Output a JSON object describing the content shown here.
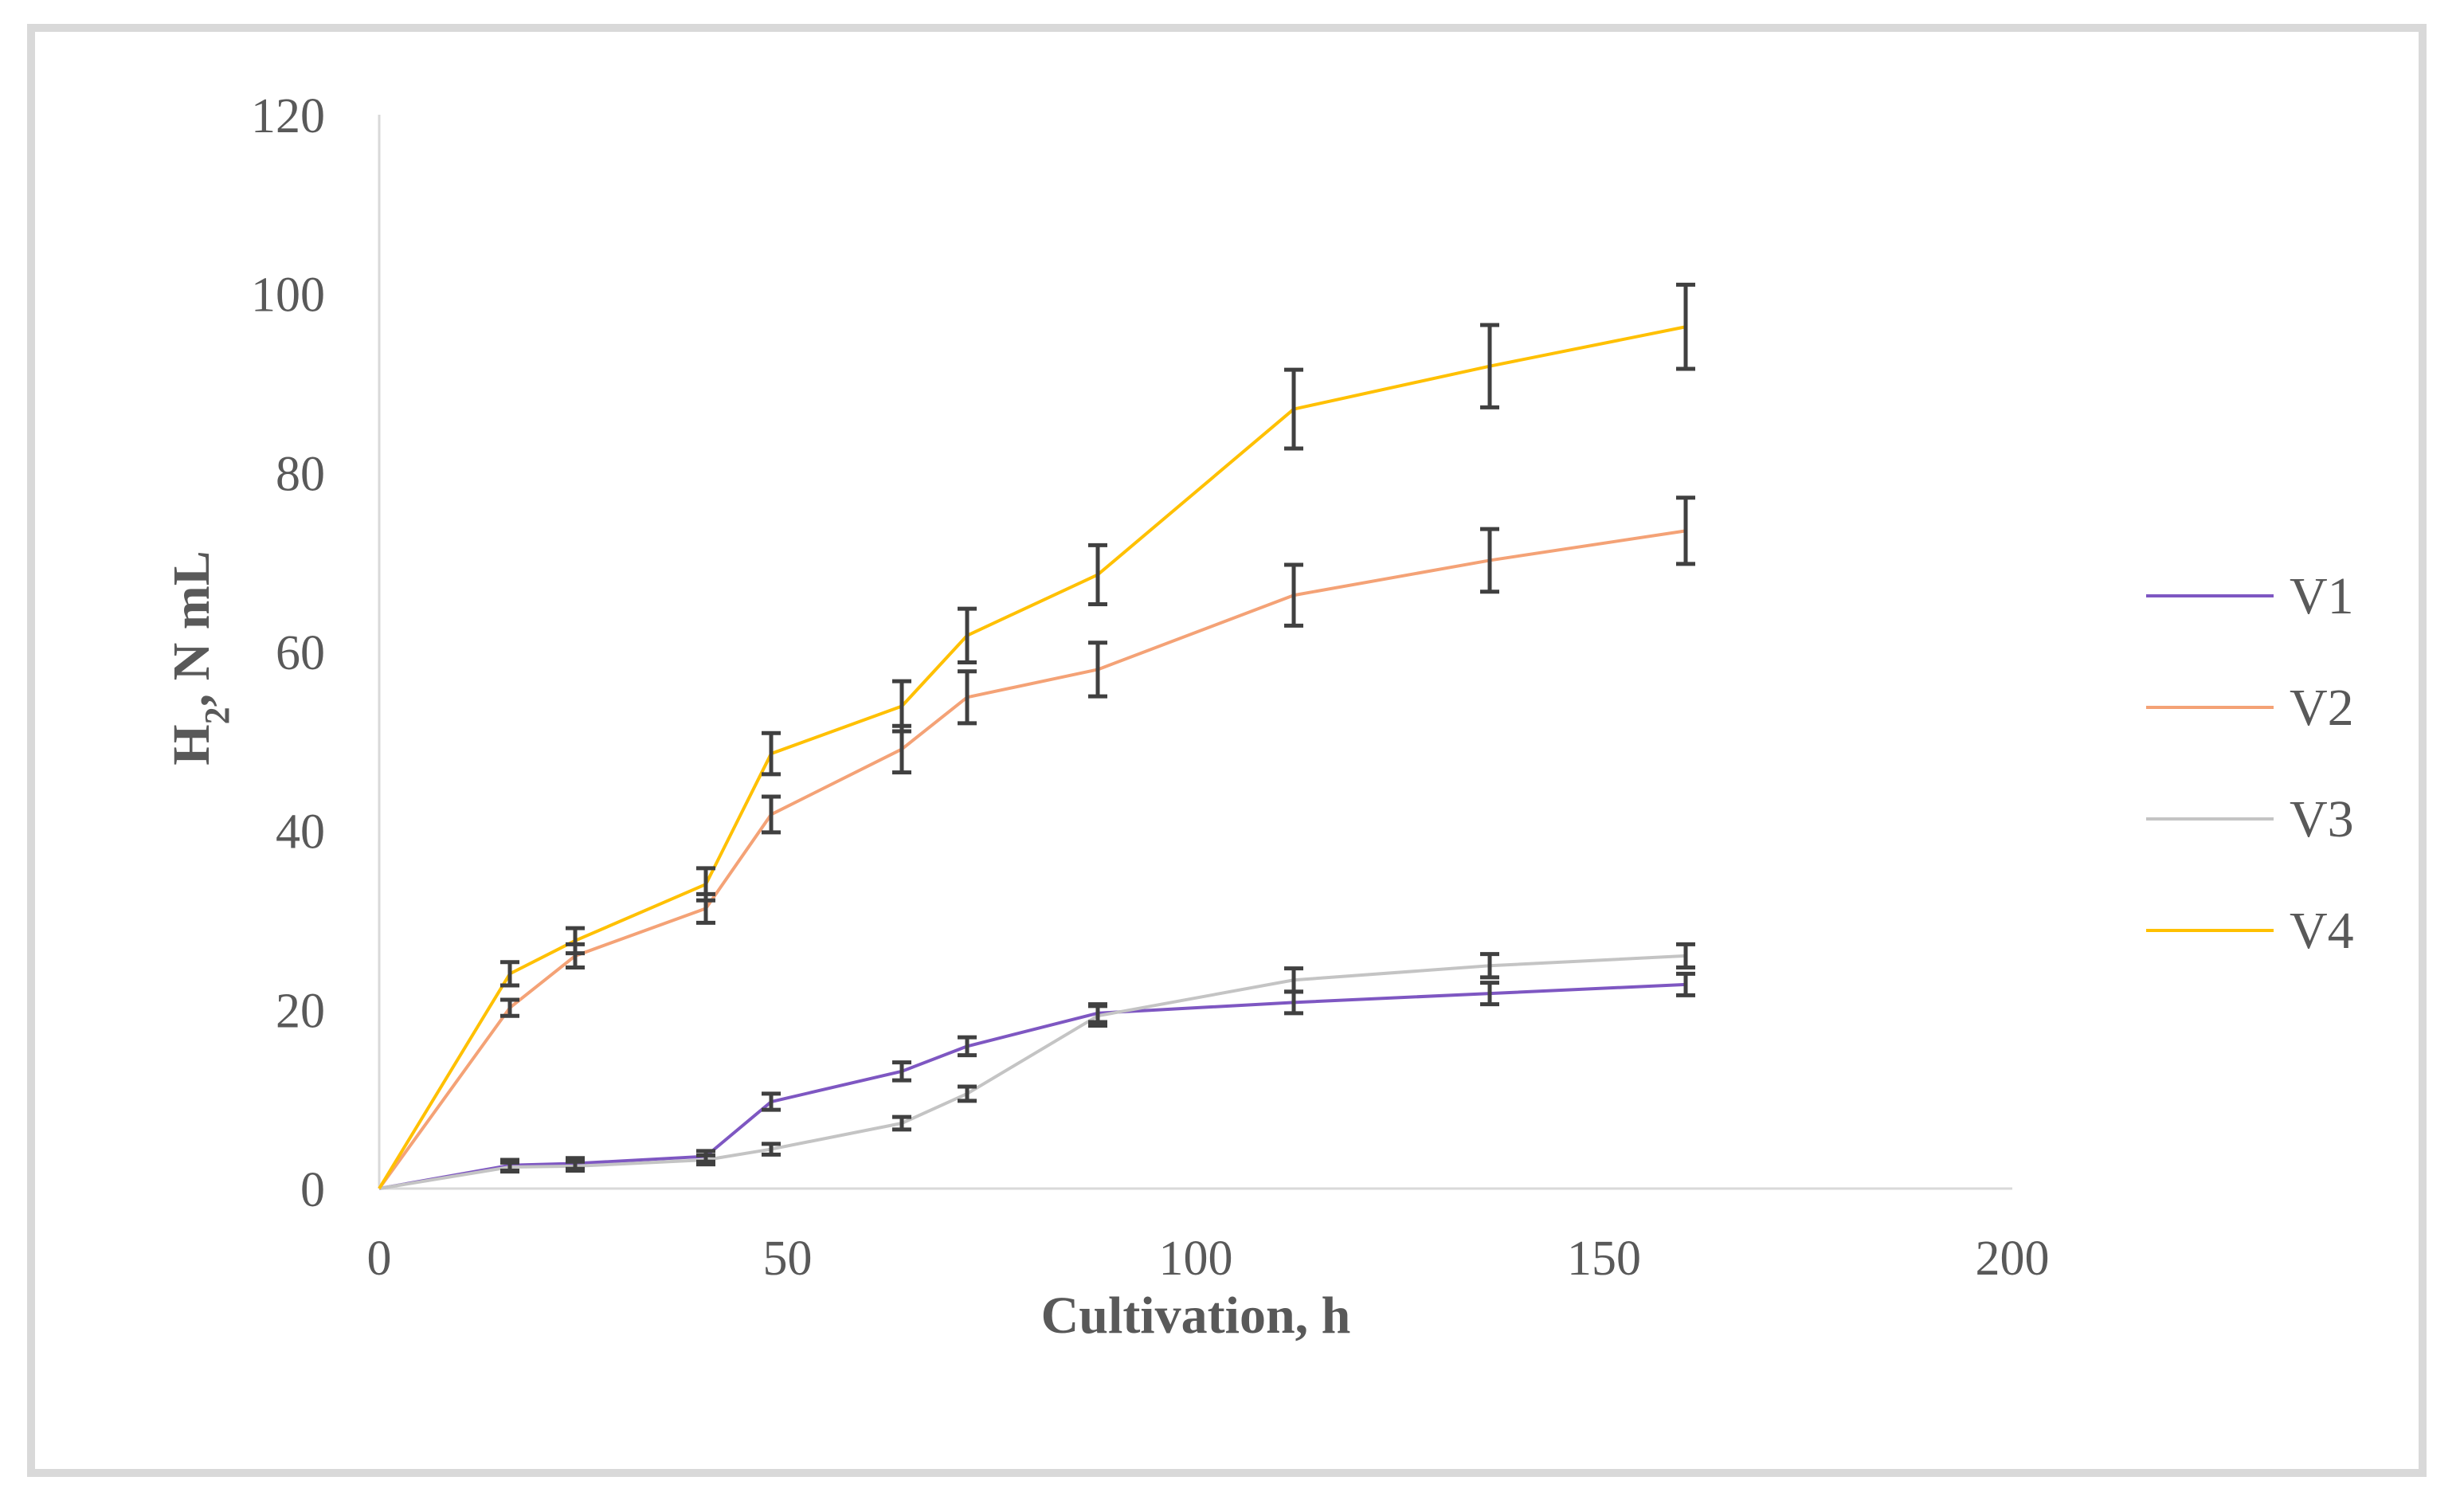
{
  "chart_data": {
    "type": "line",
    "title": "",
    "xlabel": "Cultivation, h",
    "ylabel_main": "H",
    "ylabel_sub": "2",
    "ylabel_rest": ", N mL",
    "xlim": [
      0,
      200
    ],
    "ylim": [
      0,
      120
    ],
    "xticks": [
      "0",
      "50",
      "100",
      "150",
      "200"
    ],
    "yticks": [
      "0",
      "20",
      "40",
      "60",
      "80",
      "100",
      "120"
    ],
    "xtick_values": [
      0,
      50,
      100,
      150,
      200
    ],
    "ytick_values": [
      0,
      20,
      40,
      60,
      80,
      100,
      120
    ],
    "grid": false,
    "legend_position": "right",
    "x": [
      0,
      16,
      24,
      40,
      48,
      64,
      72,
      88,
      112,
      136,
      160
    ],
    "series": [
      {
        "name": "V1",
        "color": "#7e57c2",
        "values": [
          0,
          2.6,
          2.8,
          3.6,
          9.7,
          13.1,
          15.9,
          19.6,
          20.8,
          21.8,
          22.8
        ],
        "errors": [
          0,
          0.6,
          0.6,
          0.6,
          0.9,
          1.0,
          1.0,
          1.0,
          1.2,
          1.2,
          1.2
        ]
      },
      {
        "name": "V2",
        "color": "#f4a276",
        "values": [
          0,
          20.2,
          26.0,
          31.3,
          41.8,
          49.1,
          54.9,
          58.0,
          66.3,
          70.2,
          73.5
        ],
        "errors": [
          0,
          0.9,
          1.3,
          1.6,
          2.0,
          2.6,
          2.9,
          3.0,
          3.4,
          3.5,
          3.7
        ]
      },
      {
        "name": "V3",
        "color": "#c4c4c4",
        "values": [
          0,
          2.4,
          2.5,
          3.2,
          4.4,
          7.3,
          10.6,
          19.3,
          23.3,
          24.9,
          26.0
        ],
        "errors": [
          0,
          0.5,
          0.5,
          0.5,
          0.6,
          0.7,
          0.8,
          1.1,
          1.3,
          1.3,
          1.3
        ]
      },
      {
        "name": "V4",
        "color": "#ffc000",
        "values": [
          0,
          24.0,
          27.7,
          34.0,
          48.6,
          53.9,
          61.8,
          68.6,
          87.1,
          91.9,
          96.3
        ],
        "errors": [
          0,
          1.3,
          1.4,
          1.8,
          2.3,
          2.8,
          3.0,
          3.3,
          4.4,
          4.6,
          4.7
        ]
      }
    ]
  }
}
